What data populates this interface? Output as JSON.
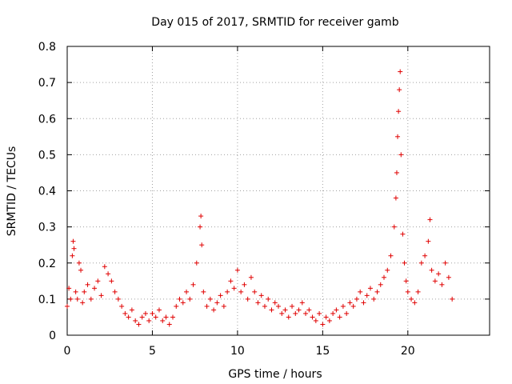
{
  "chart_data": {
    "type": "scatter",
    "title": "Day 015 of 2017, SRMTID for receiver gamb",
    "xlabel": "GPS time / hours",
    "ylabel": "SRMTID / TECUs",
    "xlim": [
      0,
      24.8
    ],
    "ylim": [
      0,
      0.8
    ],
    "xticks": [
      0,
      5,
      10,
      15,
      20
    ],
    "xtick_labels": [
      "0",
      "5",
      "10",
      "15",
      "20"
    ],
    "yticks": [
      0,
      0.1,
      0.2,
      0.3,
      0.4,
      0.5,
      0.6,
      0.7,
      0.8
    ],
    "ytick_labels": [
      "0",
      "0.1",
      "0.2",
      "0.3",
      "0.4",
      "0.5",
      "0.6",
      "0.7",
      "0.8"
    ],
    "grid": true,
    "marker": "plus",
    "color": "#e00000",
    "series": [
      {
        "name": "SRMTID",
        "points": [
          [
            0.0,
            0.08
          ],
          [
            0.1,
            0.13
          ],
          [
            0.2,
            0.1
          ],
          [
            0.3,
            0.22
          ],
          [
            0.35,
            0.26
          ],
          [
            0.4,
            0.24
          ],
          [
            0.5,
            0.12
          ],
          [
            0.6,
            0.1
          ],
          [
            0.7,
            0.2
          ],
          [
            0.8,
            0.18
          ],
          [
            0.9,
            0.09
          ],
          [
            1.0,
            0.12
          ],
          [
            1.2,
            0.14
          ],
          [
            1.4,
            0.1
          ],
          [
            1.6,
            0.13
          ],
          [
            1.8,
            0.15
          ],
          [
            2.0,
            0.11
          ],
          [
            2.2,
            0.19
          ],
          [
            2.4,
            0.17
          ],
          [
            2.6,
            0.15
          ],
          [
            2.8,
            0.12
          ],
          [
            3.0,
            0.1
          ],
          [
            3.2,
            0.08
          ],
          [
            3.4,
            0.06
          ],
          [
            3.6,
            0.05
          ],
          [
            3.8,
            0.07
          ],
          [
            4.0,
            0.04
          ],
          [
            4.2,
            0.03
          ],
          [
            4.4,
            0.05
          ],
          [
            4.6,
            0.06
          ],
          [
            4.8,
            0.04
          ],
          [
            5.0,
            0.06
          ],
          [
            5.2,
            0.05
          ],
          [
            5.4,
            0.07
          ],
          [
            5.6,
            0.04
          ],
          [
            5.8,
            0.05
          ],
          [
            6.0,
            0.03
          ],
          [
            6.2,
            0.05
          ],
          [
            6.4,
            0.08
          ],
          [
            6.6,
            0.1
          ],
          [
            6.8,
            0.09
          ],
          [
            7.0,
            0.12
          ],
          [
            7.2,
            0.1
          ],
          [
            7.4,
            0.14
          ],
          [
            7.6,
            0.2
          ],
          [
            7.8,
            0.3
          ],
          [
            7.85,
            0.33
          ],
          [
            7.9,
            0.25
          ],
          [
            8.0,
            0.12
          ],
          [
            8.2,
            0.08
          ],
          [
            8.4,
            0.1
          ],
          [
            8.6,
            0.07
          ],
          [
            8.8,
            0.09
          ],
          [
            9.0,
            0.11
          ],
          [
            9.2,
            0.08
          ],
          [
            9.4,
            0.12
          ],
          [
            9.6,
            0.15
          ],
          [
            9.8,
            0.13
          ],
          [
            10.0,
            0.18
          ],
          [
            10.2,
            0.12
          ],
          [
            10.4,
            0.14
          ],
          [
            10.6,
            0.1
          ],
          [
            10.8,
            0.16
          ],
          [
            11.0,
            0.12
          ],
          [
            11.2,
            0.09
          ],
          [
            11.4,
            0.11
          ],
          [
            11.6,
            0.08
          ],
          [
            11.8,
            0.1
          ],
          [
            12.0,
            0.07
          ],
          [
            12.2,
            0.09
          ],
          [
            12.4,
            0.08
          ],
          [
            12.6,
            0.06
          ],
          [
            12.8,
            0.07
          ],
          [
            13.0,
            0.05
          ],
          [
            13.2,
            0.08
          ],
          [
            13.4,
            0.06
          ],
          [
            13.6,
            0.07
          ],
          [
            13.8,
            0.09
          ],
          [
            14.0,
            0.06
          ],
          [
            14.2,
            0.07
          ],
          [
            14.4,
            0.05
          ],
          [
            14.6,
            0.04
          ],
          [
            14.8,
            0.06
          ],
          [
            15.0,
            0.03
          ],
          [
            15.2,
            0.05
          ],
          [
            15.4,
            0.04
          ],
          [
            15.6,
            0.06
          ],
          [
            15.8,
            0.07
          ],
          [
            16.0,
            0.05
          ],
          [
            16.2,
            0.08
          ],
          [
            16.4,
            0.06
          ],
          [
            16.6,
            0.09
          ],
          [
            16.8,
            0.08
          ],
          [
            17.0,
            0.1
          ],
          [
            17.2,
            0.12
          ],
          [
            17.4,
            0.09
          ],
          [
            17.6,
            0.11
          ],
          [
            17.8,
            0.13
          ],
          [
            18.0,
            0.1
          ],
          [
            18.2,
            0.12
          ],
          [
            18.4,
            0.14
          ],
          [
            18.6,
            0.16
          ],
          [
            18.8,
            0.18
          ],
          [
            19.0,
            0.22
          ],
          [
            19.2,
            0.3
          ],
          [
            19.3,
            0.38
          ],
          [
            19.35,
            0.45
          ],
          [
            19.4,
            0.55
          ],
          [
            19.45,
            0.62
          ],
          [
            19.5,
            0.68
          ],
          [
            19.55,
            0.73
          ],
          [
            19.6,
            0.5
          ],
          [
            19.7,
            0.28
          ],
          [
            19.8,
            0.2
          ],
          [
            19.9,
            0.15
          ],
          [
            20.0,
            0.12
          ],
          [
            20.2,
            0.1
          ],
          [
            20.4,
            0.09
          ],
          [
            20.6,
            0.12
          ],
          [
            20.8,
            0.2
          ],
          [
            21.0,
            0.22
          ],
          [
            21.2,
            0.26
          ],
          [
            21.3,
            0.32
          ],
          [
            21.4,
            0.18
          ],
          [
            21.6,
            0.15
          ],
          [
            21.8,
            0.17
          ],
          [
            22.0,
            0.14
          ],
          [
            22.2,
            0.2
          ],
          [
            22.4,
            0.16
          ],
          [
            22.6,
            0.1
          ]
        ]
      }
    ]
  }
}
